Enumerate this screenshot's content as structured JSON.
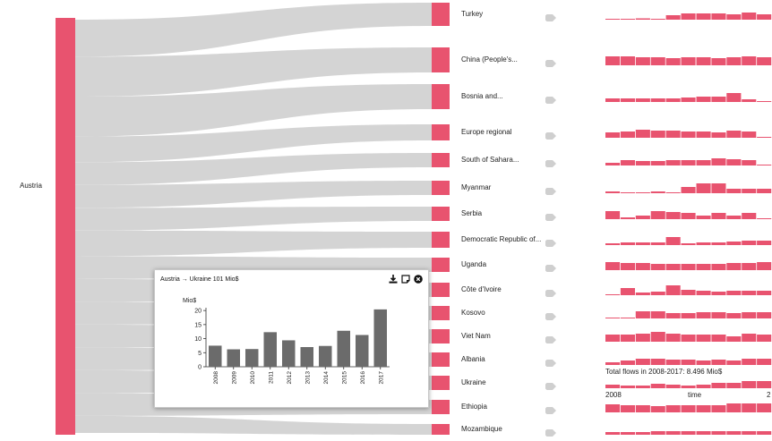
{
  "source": {
    "label": "Austria"
  },
  "colors": {
    "node": "#e8536f",
    "flow": "#d2d2d2",
    "bar": "#e8536f",
    "popup_bar": "#6b6b6b"
  },
  "targets": [
    {
      "label": "Turkey",
      "spark": [
        1,
        1,
        1.5,
        1,
        5,
        7,
        7,
        7,
        6,
        8,
        6
      ]
    },
    {
      "label": "China (People's...",
      "spark": [
        10,
        10,
        9,
        9,
        8,
        9,
        9,
        8,
        9,
        10,
        9
      ]
    },
    {
      "label": "Bosnia and...",
      "spark": [
        4,
        4,
        4,
        4,
        4,
        5,
        6,
        6,
        10,
        3,
        1
      ]
    },
    {
      "label": "Europe regional",
      "spark": [
        6,
        7,
        9,
        8,
        8,
        7,
        7,
        6,
        8,
        7,
        1
      ]
    },
    {
      "label": "South of Sahara...",
      "spark": [
        3,
        6,
        5,
        5,
        6,
        6,
        6,
        8,
        7,
        6,
        1
      ]
    },
    {
      "label": "Myanmar",
      "spark": [
        2,
        1,
        1,
        2,
        1,
        7,
        11,
        11,
        5,
        5,
        5
      ]
    },
    {
      "label": "Serbia",
      "spark": [
        9,
        2,
        4,
        9,
        8,
        7,
        4,
        7,
        4,
        7,
        1
      ]
    },
    {
      "label": "Democratic Republic of...",
      "spark": [
        2,
        3,
        3,
        3,
        9,
        2,
        3,
        3,
        4,
        5,
        5
      ]
    },
    {
      "label": "Uganda",
      "spark": [
        9,
        8,
        8,
        7,
        7,
        7,
        7,
        7,
        8,
        8,
        9
      ]
    },
    {
      "label": "Côte d'Ivoire",
      "spark": [
        1,
        8,
        3,
        4,
        11,
        6,
        5,
        4,
        5,
        5,
        5
      ]
    },
    {
      "label": "Kosovo",
      "spark": [
        0,
        0,
        8,
        8,
        6,
        6,
        7,
        7,
        6,
        7,
        7
      ]
    },
    {
      "label": "Viet Nam",
      "spark": [
        8,
        8,
        9,
        11,
        9,
        8,
        8,
        8,
        6,
        9,
        8
      ]
    },
    {
      "label": "Albania",
      "spark": [
        3,
        5,
        7,
        7,
        6,
        6,
        5,
        6,
        5,
        7,
        7
      ]
    },
    {
      "label": "Ukraine",
      "spark": [
        4,
        3,
        3,
        5,
        4,
        3,
        4,
        6,
        6,
        8,
        8
      ]
    },
    {
      "label": "Ethiopia",
      "spark": [
        9,
        8,
        8,
        7,
        8,
        8,
        8,
        8,
        10,
        10,
        10
      ]
    },
    {
      "label": "Mozambique",
      "spark": [
        3,
        3,
        3,
        4,
        4,
        4,
        4,
        4,
        4,
        4,
        4
      ]
    }
  ],
  "total_note": "Total flows in 2008-2017: 8.496 Mio$",
  "time_axis": {
    "start": "2008",
    "label": "time",
    "end": "2"
  },
  "chart_data": {
    "type": "bar",
    "title": "Austria → Ukraine 101 Mio$",
    "ylabel": "Mio$",
    "xlabel": "",
    "categories": [
      "2008",
      "2009",
      "2010",
      "2011",
      "2012",
      "2013",
      "2014",
      "2015",
      "2016",
      "2017"
    ],
    "values": [
      7.5,
      6.2,
      6.3,
      12.3,
      9.4,
      7.0,
      7.4,
      12.8,
      11.3,
      20.4
    ],
    "yticks": [
      0,
      5,
      10,
      15,
      20
    ],
    "ylim": [
      0,
      21
    ]
  }
}
